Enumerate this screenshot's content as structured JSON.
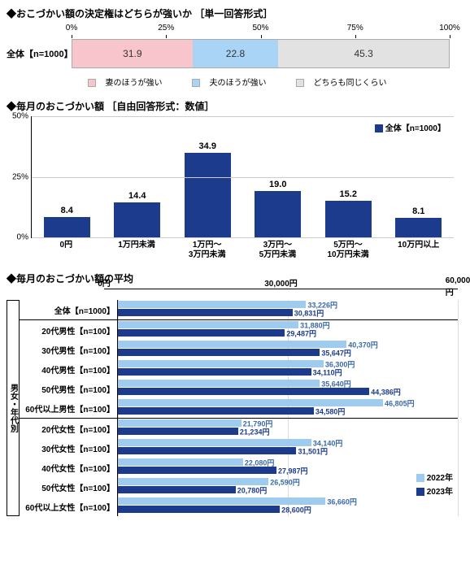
{
  "chart1": {
    "title": "◆おこづかい額の決定権はどちらが強いか ［単一回答形式］",
    "row_label": "全体【n=1000】",
    "xmax": 100,
    "xtick_step": 25,
    "xtick_suffix": "%",
    "segments": [
      {
        "label": "妻のほうが強い",
        "value": 31.9,
        "color": "#f7c5cb"
      },
      {
        "label": "夫のほうが強い",
        "value": 22.8,
        "color": "#a9d4f5"
      },
      {
        "label": "どちらも同じくらい",
        "value": 45.3,
        "color": "#e2e2e2"
      }
    ]
  },
  "chart2": {
    "title": "◆毎月のおこづかい額 ［自由回答形式：数値］",
    "ymax": 50,
    "ytick_step": 25,
    "ytick_suffix": "%",
    "legend": "全体【n=1000】",
    "bar_color": "#1c3b8c",
    "categories": [
      {
        "label": "0円",
        "value": 8.4
      },
      {
        "label": "1万円未満",
        "value": 14.4
      },
      {
        "label": "1万円～\n3万円未満",
        "value": 34.9
      },
      {
        "label": "3万円～\n5万円未満",
        "value": 19.0
      },
      {
        "label": "5万円～\n10万円未満",
        "value": 15.2
      },
      {
        "label": "10万円以上",
        "value": 8.1
      }
    ]
  },
  "chart3": {
    "title": "◆毎月のおこづかい額の平均",
    "xmax": 60000,
    "xtick_step": 30000,
    "xtick_suffix": "円",
    "side_label": "男女・年代別",
    "series": [
      {
        "label": "2022年",
        "color": "#9fccee"
      },
      {
        "label": "2023年",
        "color": "#1c3b8c"
      }
    ],
    "groups": [
      {
        "rows": [
          {
            "label": "全体【n=1000】",
            "v2022": 33226,
            "v2023": 30831
          }
        ],
        "side": false
      },
      {
        "rows": [
          {
            "label": "20代男性【n=100】",
            "v2022": 31880,
            "v2023": 29487
          },
          {
            "label": "30代男性【n=100】",
            "v2022": 40370,
            "v2023": 35647
          },
          {
            "label": "40代男性【n=100】",
            "v2022": 36300,
            "v2023": 34110
          },
          {
            "label": "50代男性【n=100】",
            "v2022": 35640,
            "v2023": 44386
          },
          {
            "label": "60代以上男性【n=100】",
            "v2022": 46805,
            "v2023": 34580
          }
        ],
        "side": true
      },
      {
        "rows": [
          {
            "label": "20代女性【n=100】",
            "v2022": 21790,
            "v2023": 21234
          },
          {
            "label": "30代女性【n=100】",
            "v2022": 34140,
            "v2023": 31501
          },
          {
            "label": "40代女性【n=100】",
            "v2022": 22080,
            "v2023": 27987
          },
          {
            "label": "50代女性【n=100】",
            "v2022": 26590,
            "v2023": 20780
          },
          {
            "label": "60代以上女性【n=100】",
            "v2022": 36660,
            "v2023": 28600
          }
        ],
        "side": true
      }
    ]
  }
}
